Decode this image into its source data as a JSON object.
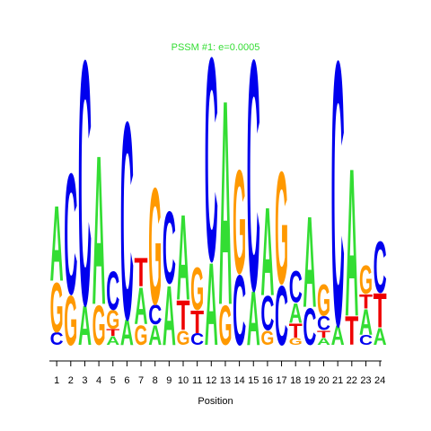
{
  "chart_data": {
    "type": "sequence-logo",
    "title": "PSSM #1: e=0.0005",
    "xlabel": "Position",
    "ylabel": "",
    "x": [
      1,
      2,
      3,
      4,
      5,
      6,
      7,
      8,
      9,
      10,
      11,
      12,
      13,
      14,
      15,
      16,
      17,
      18,
      19,
      20,
      21,
      22,
      23,
      24
    ],
    "ylim": [
      0,
      2
    ],
    "colors": {
      "A": "#33dd33",
      "C": "#0000ee",
      "G": "#ff9900",
      "T": "#ee0000"
    },
    "positions": [
      {
        "pos": 1,
        "letters": [
          [
            "C",
            0.09
          ],
          [
            "G",
            0.35
          ],
          [
            "A",
            0.53
          ]
        ]
      },
      {
        "pos": 2,
        "letters": [
          [
            "G",
            0.35
          ],
          [
            "C",
            0.85
          ]
        ]
      },
      {
        "pos": 3,
        "letters": [
          [
            "A",
            0.28
          ],
          [
            "C",
            1.72
          ]
        ]
      },
      {
        "pos": 4,
        "letters": [
          [
            "G",
            0.28
          ],
          [
            "A",
            1.05
          ]
        ]
      },
      {
        "pos": 5,
        "letters": [
          [
            "A",
            0.06
          ],
          [
            "T",
            0.05
          ],
          [
            "G",
            0.13
          ],
          [
            "C",
            0.27
          ]
        ]
      },
      {
        "pos": 6,
        "letters": [
          [
            "A",
            0.18
          ],
          [
            "C",
            1.39
          ]
        ]
      },
      {
        "pos": 7,
        "letters": [
          [
            "G",
            0.14
          ],
          [
            "A",
            0.26
          ],
          [
            "T",
            0.2
          ]
        ]
      },
      {
        "pos": 8,
        "letters": [
          [
            "A",
            0.14
          ],
          [
            "C",
            0.14
          ],
          [
            "G",
            0.82
          ]
        ]
      },
      {
        "pos": 9,
        "letters": [
          [
            "A",
            0.42
          ],
          [
            "C",
            0.51
          ]
        ]
      },
      {
        "pos": 10,
        "letters": [
          [
            "G",
            0.1
          ],
          [
            "T",
            0.21
          ],
          [
            "A",
            0.6
          ]
        ]
      },
      {
        "pos": 11,
        "letters": [
          [
            "C",
            0.08
          ],
          [
            "T",
            0.16
          ],
          [
            "G",
            0.3
          ]
        ]
      },
      {
        "pos": 12,
        "letters": [
          [
            "A",
            0.58
          ],
          [
            "C",
            1.43
          ]
        ]
      },
      {
        "pos": 13,
        "letters": [
          [
            "G",
            0.28
          ],
          [
            "A",
            1.44
          ]
        ]
      },
      {
        "pos": 14,
        "letters": [
          [
            "C",
            0.49
          ],
          [
            "G",
            0.73
          ]
        ]
      },
      {
        "pos": 15,
        "letters": [
          [
            "A",
            0.38
          ],
          [
            "C",
            1.62
          ]
        ]
      },
      {
        "pos": 16,
        "letters": [
          [
            "G",
            0.1
          ],
          [
            "C",
            0.24
          ],
          [
            "A",
            0.62
          ]
        ]
      },
      {
        "pos": 17,
        "letters": [
          [
            "C",
            0.42
          ],
          [
            "G",
            0.79
          ]
        ]
      },
      {
        "pos": 18,
        "letters": [
          [
            "G",
            0.05
          ],
          [
            "T",
            0.1
          ],
          [
            "A",
            0.14
          ],
          [
            "C",
            0.22
          ]
        ]
      },
      {
        "pos": 19,
        "letters": [
          [
            "C",
            0.26
          ],
          [
            "A",
            0.64
          ]
        ]
      },
      {
        "pos": 20,
        "letters": [
          [
            "A",
            0.05
          ],
          [
            "T",
            0.05
          ],
          [
            "C",
            0.1
          ],
          [
            "G",
            0.22
          ]
        ]
      },
      {
        "pos": 21,
        "letters": [
          [
            "A",
            0.14
          ],
          [
            "C",
            1.86
          ]
        ]
      },
      {
        "pos": 22,
        "letters": [
          [
            "T",
            0.2
          ],
          [
            "A",
            1.04
          ]
        ]
      },
      {
        "pos": 23,
        "letters": [
          [
            "C",
            0.07
          ],
          [
            "A",
            0.18
          ],
          [
            "T",
            0.1
          ],
          [
            "G",
            0.2
          ]
        ]
      },
      {
        "pos": 24,
        "letters": [
          [
            "A",
            0.12
          ],
          [
            "T",
            0.24
          ],
          [
            "C",
            0.36
          ]
        ]
      }
    ]
  }
}
